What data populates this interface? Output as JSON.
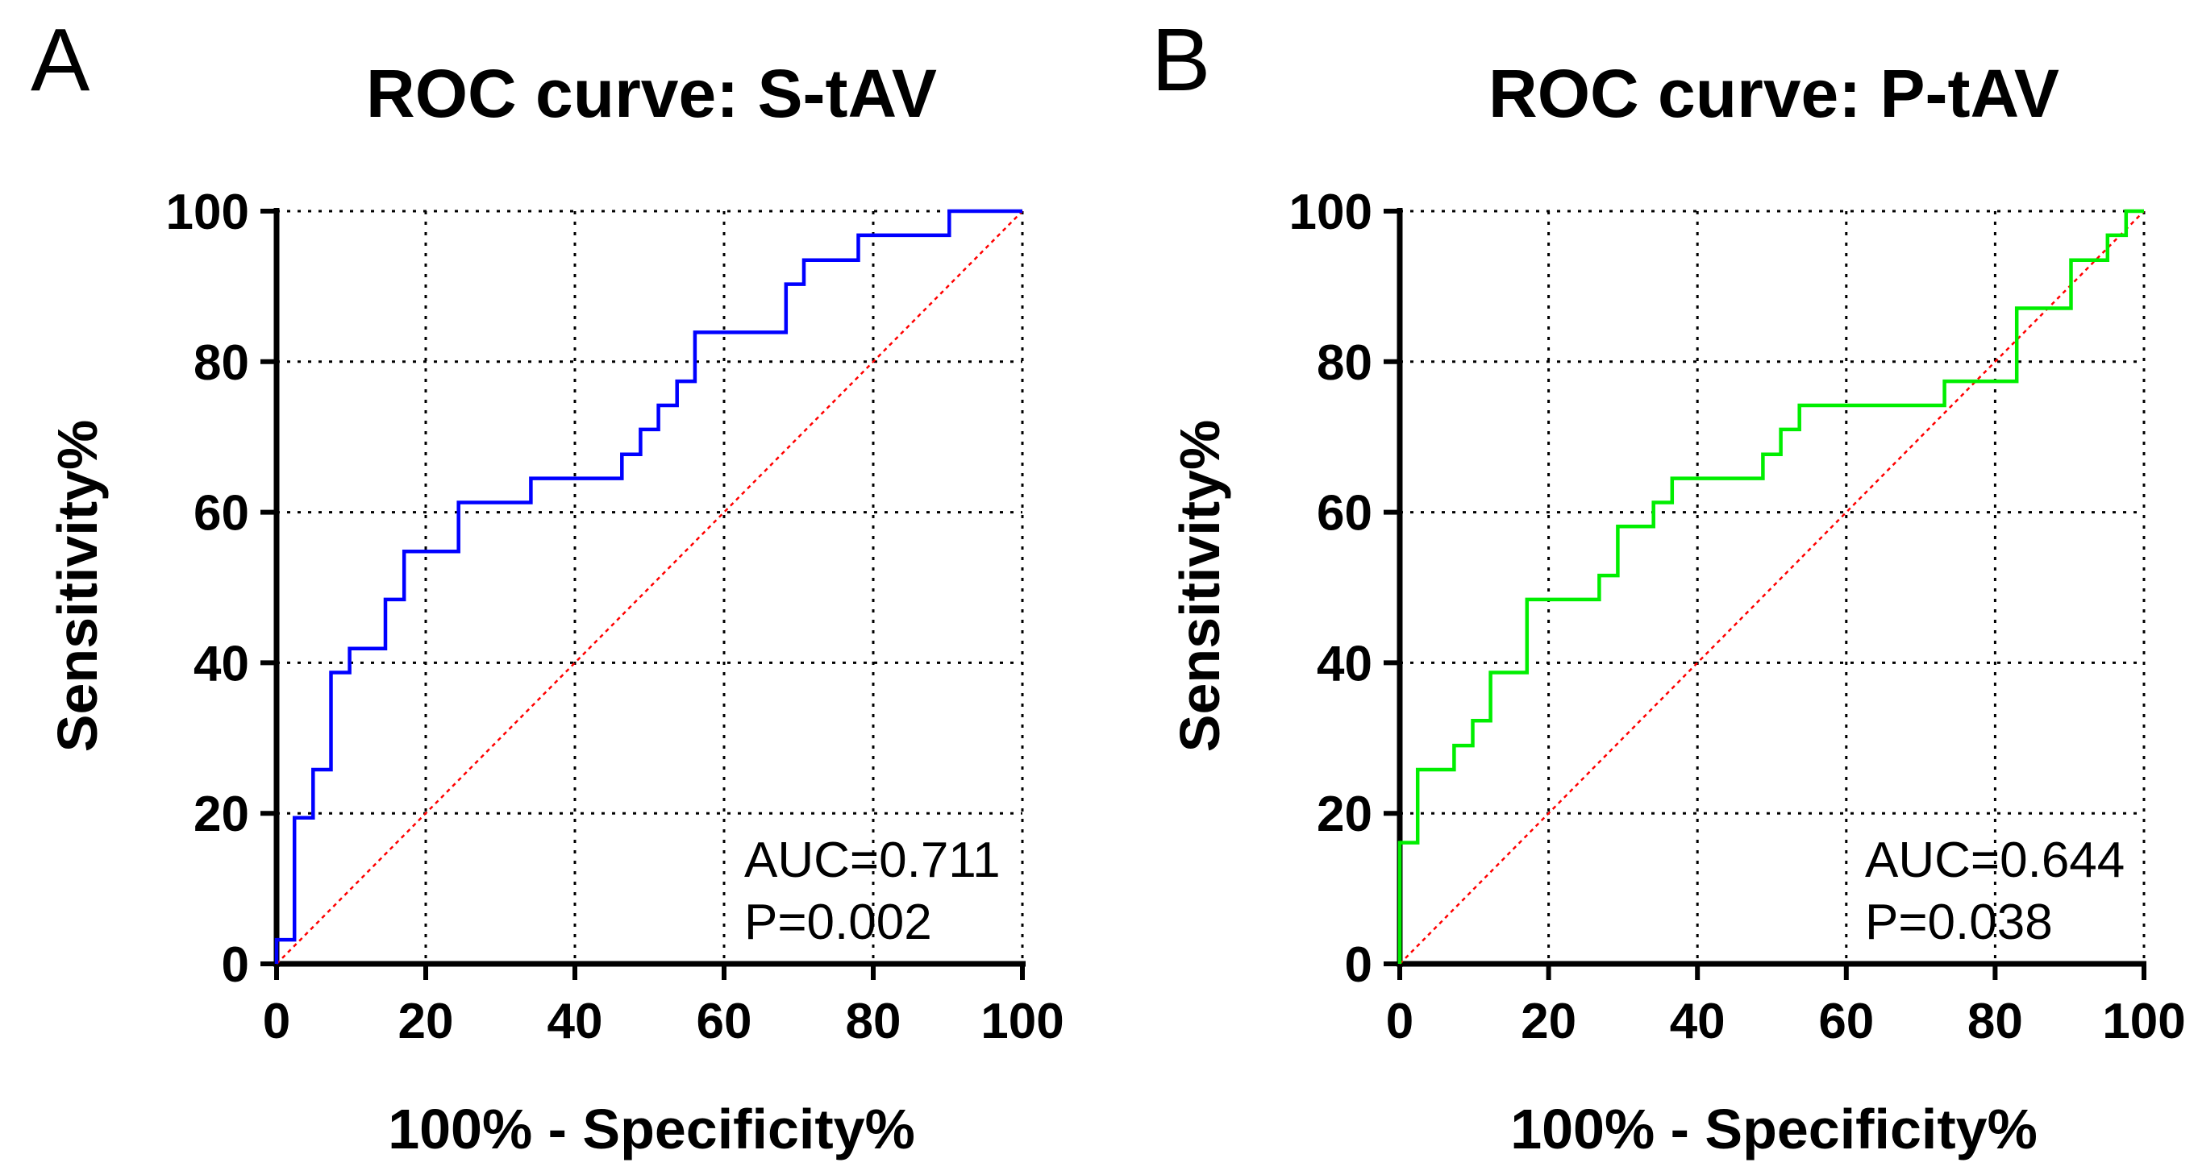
{
  "chart_data": [
    {
      "panel": "A",
      "type": "line",
      "title": "ROC curve: S-tAV",
      "xlabel": "100% - Specificity%",
      "ylabel": "Sensitivity%",
      "xlim": [
        0,
        100
      ],
      "ylim": [
        0,
        100
      ],
      "xticks": [
        "0",
        "20",
        "40",
        "60",
        "80",
        "100"
      ],
      "yticks": [
        "0",
        "20",
        "40",
        "60",
        "80",
        "100"
      ],
      "grid": true,
      "annotation": [
        "AUC=0.711",
        "P=0.002"
      ],
      "series": [
        {
          "name": "S-tAV",
          "color": "#0000ff",
          "step": true,
          "points": [
            [
              0,
              0
            ],
            [
              0,
              3.2
            ],
            [
              2.4,
              3.2
            ],
            [
              2.4,
              19.4
            ],
            [
              4.9,
              19.4
            ],
            [
              4.9,
              25.8
            ],
            [
              7.3,
              25.8
            ],
            [
              7.3,
              38.7
            ],
            [
              9.8,
              38.7
            ],
            [
              9.8,
              41.9
            ],
            [
              14.6,
              41.9
            ],
            [
              14.6,
              48.4
            ],
            [
              17.1,
              48.4
            ],
            [
              17.1,
              54.8
            ],
            [
              24.4,
              54.8
            ],
            [
              24.4,
              61.3
            ],
            [
              34.1,
              61.3
            ],
            [
              34.1,
              64.5
            ],
            [
              46.3,
              64.5
            ],
            [
              46.3,
              67.7
            ],
            [
              48.8,
              67.7
            ],
            [
              48.8,
              71.0
            ],
            [
              51.2,
              71.0
            ],
            [
              51.2,
              74.2
            ],
            [
              53.7,
              74.2
            ],
            [
              53.7,
              77.4
            ],
            [
              56.1,
              77.4
            ],
            [
              56.1,
              83.9
            ],
            [
              68.3,
              83.9
            ],
            [
              68.3,
              90.3
            ],
            [
              70.7,
              90.3
            ],
            [
              70.7,
              93.5
            ],
            [
              78.0,
              93.5
            ],
            [
              78.0,
              96.8
            ],
            [
              90.2,
              96.8
            ],
            [
              90.2,
              100
            ],
            [
              100,
              100
            ]
          ]
        },
        {
          "name": "Reference line",
          "color": "#ff0000",
          "points": [
            [
              0,
              0
            ],
            [
              100,
              100
            ]
          ]
        }
      ]
    },
    {
      "panel": "B",
      "type": "line",
      "title": "ROC curve: P-tAV",
      "xlabel": "100% - Specificity%",
      "ylabel": "Sensitivity%",
      "xlim": [
        0,
        100
      ],
      "ylim": [
        0,
        100
      ],
      "xticks": [
        "0",
        "20",
        "40",
        "60",
        "80",
        "100"
      ],
      "yticks": [
        "0",
        "20",
        "40",
        "60",
        "80",
        "100"
      ],
      "grid": true,
      "annotation": [
        "AUC=0.644",
        "P=0.038"
      ],
      "series": [
        {
          "name": "P-tAV",
          "color": "#00ee00",
          "step": true,
          "points": [
            [
              0,
              0
            ],
            [
              0,
              16.1
            ],
            [
              2.4,
              16.1
            ],
            [
              2.4,
              25.8
            ],
            [
              7.3,
              25.8
            ],
            [
              7.3,
              29.0
            ],
            [
              9.8,
              29.0
            ],
            [
              9.8,
              32.3
            ],
            [
              12.2,
              32.3
            ],
            [
              12.2,
              38.7
            ],
            [
              17.1,
              38.7
            ],
            [
              17.1,
              48.4
            ],
            [
              26.8,
              48.4
            ],
            [
              26.8,
              51.6
            ],
            [
              29.3,
              51.6
            ],
            [
              29.3,
              58.1
            ],
            [
              34.1,
              58.1
            ],
            [
              34.1,
              61.3
            ],
            [
              36.6,
              61.3
            ],
            [
              36.6,
              64.5
            ],
            [
              48.8,
              64.5
            ],
            [
              48.8,
              67.7
            ],
            [
              51.2,
              67.7
            ],
            [
              51.2,
              71.0
            ],
            [
              53.7,
              71.0
            ],
            [
              53.7,
              74.2
            ],
            [
              73.2,
              74.2
            ],
            [
              73.2,
              77.4
            ],
            [
              82.9,
              77.4
            ],
            [
              82.9,
              87.1
            ],
            [
              90.2,
              87.1
            ],
            [
              90.2,
              93.5
            ],
            [
              95.1,
              93.5
            ],
            [
              95.1,
              96.8
            ],
            [
              97.6,
              96.8
            ],
            [
              97.6,
              100
            ],
            [
              100,
              100
            ]
          ]
        },
        {
          "name": "Reference line",
          "color": "#ff0000",
          "points": [
            [
              0,
              0
            ],
            [
              100,
              100
            ]
          ]
        }
      ]
    }
  ]
}
